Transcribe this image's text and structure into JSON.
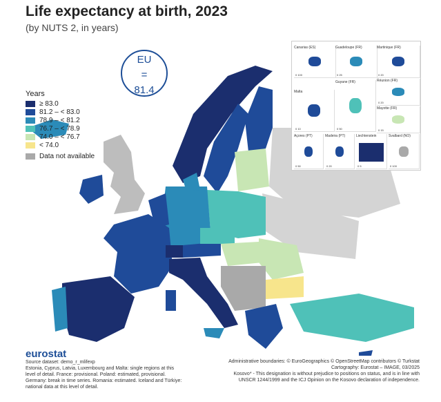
{
  "title": "Life expectancy at birth, 2023",
  "subtitle": "(by NUTS 2, in years)",
  "eu_badge": {
    "label": "EU",
    "equals": "=",
    "value": "81.4"
  },
  "legend": {
    "title": "Years",
    "items": [
      {
        "label": "≥ 83.0",
        "color": "#1b2e6e"
      },
      {
        "label": "81.2 – < 83.0",
        "color": "#1f4b99"
      },
      {
        "label": "78.9 – < 81.2",
        "color": "#2b8bb8"
      },
      {
        "label": "76.7 – < 78.9",
        "color": "#4fc1b8"
      },
      {
        "label": "74.0 – < 76.7",
        "color": "#c8e6b4"
      },
      {
        "label": "< 74.0",
        "color": "#f7e58c"
      }
    ],
    "na": {
      "label": "Data not available",
      "color": "#a9a9a9"
    }
  },
  "insets": [
    {
      "name": "Canarias (ES)",
      "scale": "0  100"
    },
    {
      "name": "Guadeloupe (FR)",
      "scale": "0  25"
    },
    {
      "name": "Martinique (FR)",
      "scale": "0  20"
    },
    {
      "name": "Réunion (FR)",
      "scale": "0  20"
    },
    {
      "name": "Malta",
      "scale": "0  10"
    },
    {
      "name": "Guyane (FR)",
      "scale": "0  50"
    },
    {
      "name": "Mayotte (FR)",
      "scale": "0  15"
    },
    {
      "name": "Açores (PT)",
      "scale": "0  50"
    },
    {
      "name": "Madeira (PT)",
      "scale": "0  20"
    },
    {
      "name": "Liechtenstein",
      "scale": "0  5"
    },
    {
      "name": "Svalbard (NO)",
      "scale": "0  100"
    }
  ],
  "footer": {
    "brand": "eurostat",
    "left_lines": [
      "Source dataset: demo_r_mlifexp",
      "Estonia, Cyprus, Latvia, Luxembourg and Malta: single regions at this",
      "level of detail. France: provisional. Poland: estimated, provisional.",
      "Germany: break in time series. Romania: estimated. Iceland and Türkiye:",
      "national data at this level of detail."
    ],
    "right_lines": [
      "Administrative boundaries: © EuroGeographics © OpenStreetMap contributors © Turkstat",
      "Cartography: Eurostat – IMAGE, 03/2025",
      "Kosovo* - This designation is without prejudice to positions on status, and is in line with",
      "UNSCR 1244/1999 and the ICJ Opinion on the Kosovo declaration of independence."
    ]
  }
}
